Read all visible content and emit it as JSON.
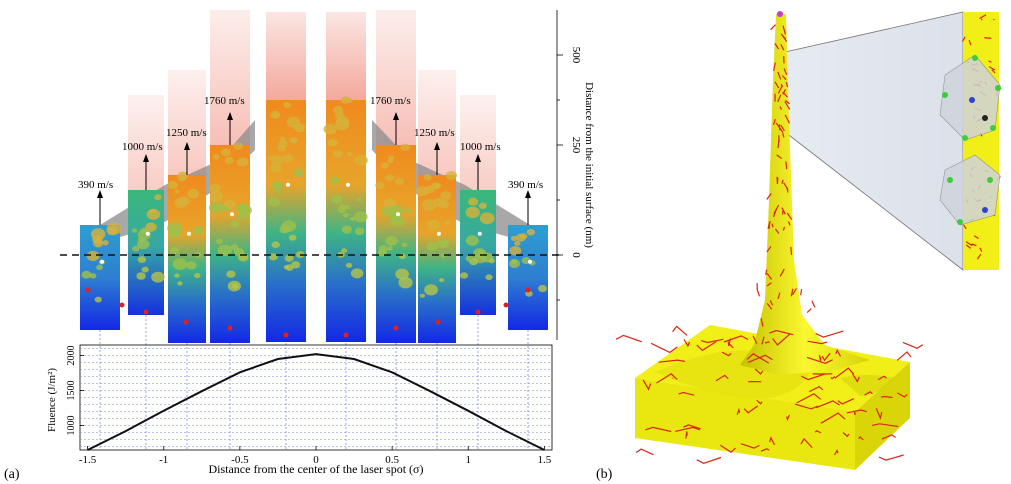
{
  "panel_a": {
    "label": "(a)",
    "velocity_labels": {
      "left": [
        "390 m/s",
        "1000 m/s",
        "1250 m/s",
        "1760 m/s"
      ],
      "right": [
        "1760 m/s",
        "1250 m/s",
        "1000 m/s",
        "390 m/s"
      ]
    },
    "right_axis": {
      "label": "Distance from the initial surface (nm)",
      "ticks": [
        "500",
        "250",
        "0"
      ]
    },
    "fluence_plot": {
      "ylabel": "Fluence (J/m²)",
      "yticks": [
        "2000",
        "1500",
        "1000"
      ],
      "xlabel": "Distance from the center of the laser spot (σ)",
      "xticks": [
        "-1.5",
        "-1",
        "-0.5",
        "0",
        "0.5",
        "1",
        "1.5"
      ]
    }
  },
  "panel_b": {
    "label": "(b)"
  },
  "colors": {
    "surface_yellow": "#f5f214",
    "dislocation_red": "#d8261a",
    "plume_pink": "#f8c6bf",
    "deep_blue": "#1530e0",
    "teal": "#2fae8c",
    "orange": "#ee8a1c"
  },
  "chart_data": {
    "type": "line",
    "x": [
      -1.5,
      -1.25,
      -1.0,
      -0.75,
      -0.5,
      -0.25,
      0.0,
      0.25,
      0.5,
      0.75,
      1.0,
      1.25,
      1.5
    ],
    "series": [
      {
        "values": [
          650,
          920,
          1210,
          1490,
          1760,
          1950,
          2020,
          1950,
          1760,
          1490,
          1210,
          920,
          650
        ]
      }
    ],
    "xlabel": "Distance from the center of the laser spot (σ)",
    "ylabel": "Fluence (J/m²)",
    "xlim": [
      -1.55,
      1.55
    ],
    "ylim": [
      650,
      2150
    ],
    "grid": true
  }
}
